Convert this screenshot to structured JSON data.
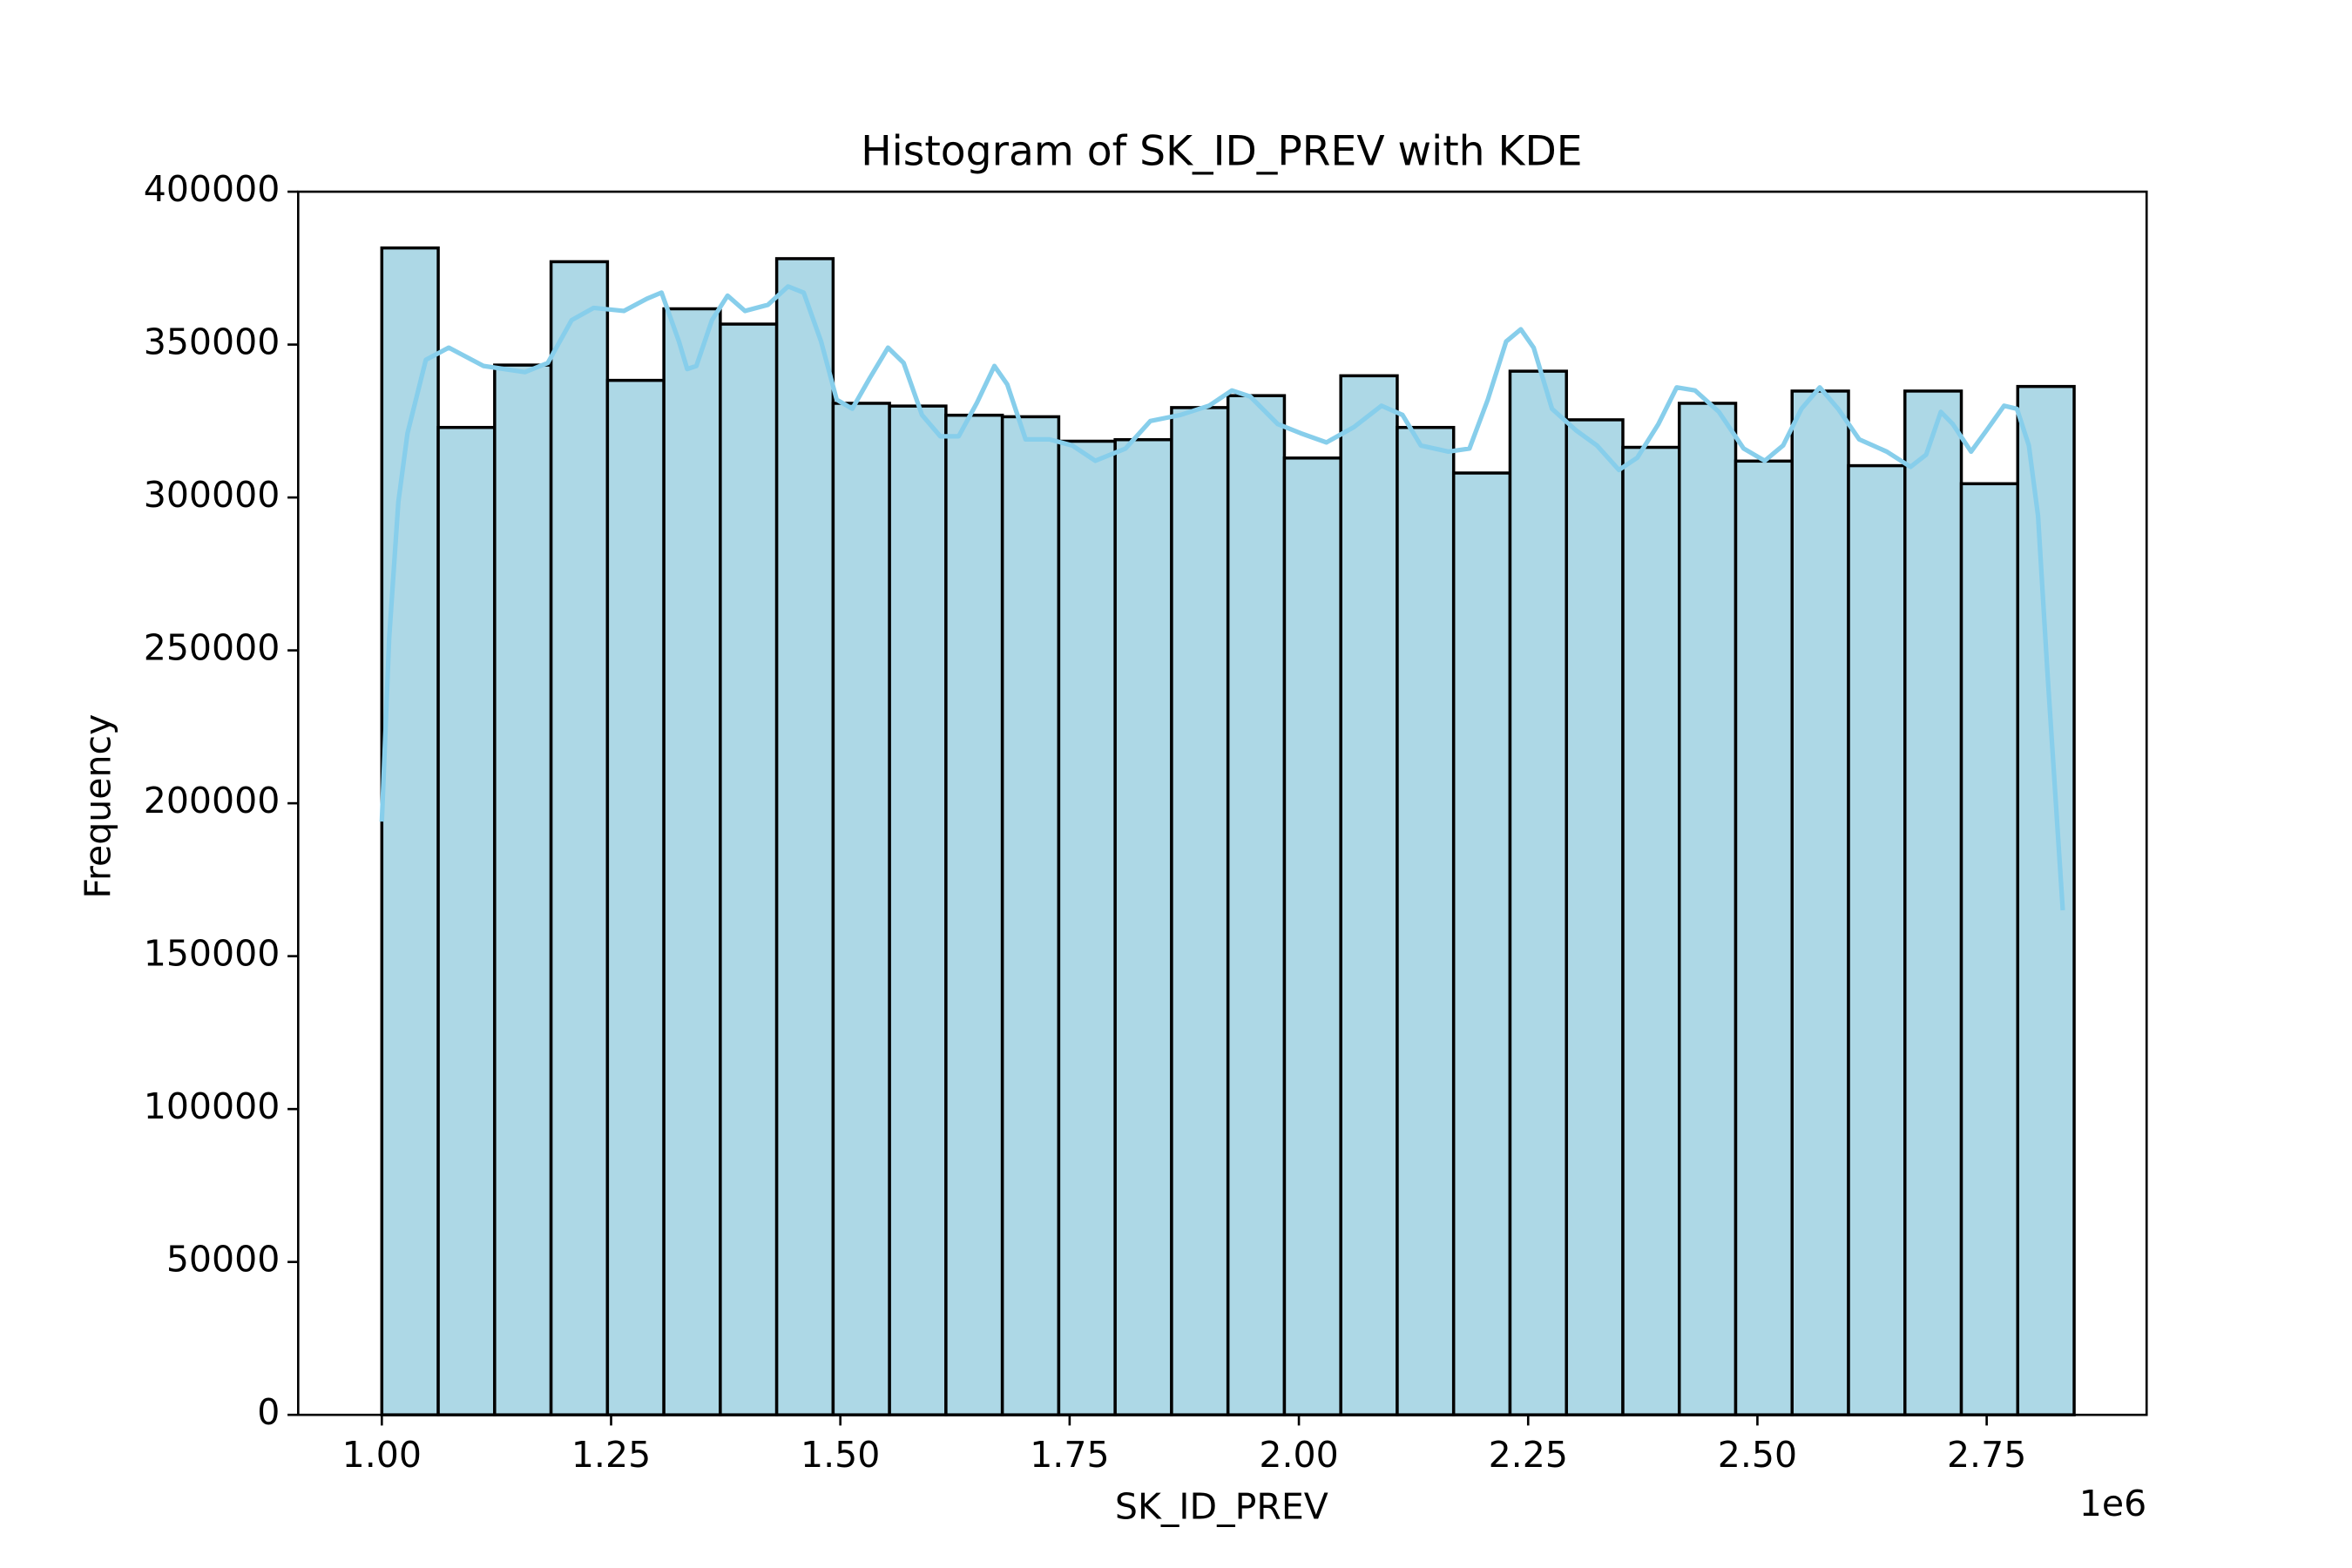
{
  "chart_data": {
    "type": "histogram",
    "title": "Histogram of SK_ID_PREV with KDE",
    "x_label": "SK_ID_PREV",
    "y_label": "Frequency",
    "x_offset_label": "1e6",
    "bins": [
      1000001,
      1061514,
      1123026,
      1184539,
      1246052,
      1307564,
      1369077,
      1430590,
      1492103,
      1553615,
      1615128,
      1676641,
      1738153,
      1799666,
      1861179,
      1922692,
      1984204,
      2045717,
      2107230,
      2168742,
      2230255,
      2291768,
      2353281,
      2414793,
      2476306,
      2537819,
      2599331,
      2660844,
      2722357,
      2783870,
      2845382
    ],
    "values": [
      381600,
      322900,
      343300,
      377100,
      338300,
      361700,
      356700,
      378100,
      330800,
      329900,
      326900,
      326400,
      318400,
      318900,
      329400,
      333300,
      312900,
      339800,
      322900,
      308000,
      341300,
      325400,
      316400,
      330800,
      311900,
      334800,
      310400,
      334800,
      304500,
      336300
    ],
    "color": "#add8e6",
    "edge_color": "#000000",
    "kde": {
      "color": "#87ceeb",
      "x": [
        1000000,
        1008000,
        1018000,
        1028000,
        1048000,
        1073000,
        1111000,
        1156000,
        1181000,
        1207000,
        1231000,
        1264000,
        1289000,
        1305000,
        1324000,
        1333000,
        1343000,
        1360000,
        1377000,
        1396000,
        1421000,
        1443000,
        1460000,
        1479000,
        1496000,
        1513000,
        1532000,
        1552000,
        1569000,
        1589000,
        1609000,
        1629000,
        1649000,
        1668000,
        1682000,
        1702000,
        1728000,
        1753000,
        1778000,
        1811000,
        1838000,
        1871000,
        1902000,
        1927000,
        1947000,
        1977000,
        2002000,
        2030000,
        2060000,
        2090000,
        2113000,
        2133000,
        2163000,
        2186000,
        2206000,
        2226000,
        2242000,
        2256000,
        2276000,
        2302000,
        2325000,
        2349000,
        2369000,
        2392000,
        2412000,
        2432000,
        2458000,
        2485000,
        2508000,
        2528000,
        2548000,
        2568000,
        2588000,
        2611000,
        2641000,
        2667000,
        2684000,
        2700000,
        2713000,
        2733000,
        2750000,
        2769000,
        2783000,
        2796000,
        2806000,
        2816000,
        2833000
      ],
      "values": [
        194000,
        254000,
        298500,
        321000,
        345000,
        349000,
        343000,
        341000,
        344000,
        358000,
        362000,
        361000,
        365000,
        367000,
        351000,
        342000,
        343000,
        358000,
        366000,
        361000,
        363000,
        369000,
        367000,
        351000,
        332000,
        329000,
        339000,
        349000,
        344000,
        327000,
        320000,
        320000,
        331000,
        343000,
        337000,
        319000,
        319000,
        317000,
        312000,
        316000,
        325000,
        327000,
        330000,
        335000,
        333000,
        324000,
        321000,
        318000,
        323000,
        330000,
        327000,
        317000,
        315000,
        316000,
        332000,
        351000,
        355000,
        349000,
        329000,
        322000,
        317000,
        309000,
        313000,
        324000,
        336000,
        335000,
        328000,
        316000,
        312000,
        317000,
        329000,
        336000,
        329000,
        319000,
        315000,
        310000,
        314000,
        328000,
        324000,
        315000,
        322000,
        330000,
        329000,
        317000,
        294000,
        244000,
        165000
      ]
    },
    "xlim": [
      908800,
      2924400
    ],
    "xticks": [
      {
        "value": 1000000,
        "label": "1.00"
      },
      {
        "value": 1250000,
        "label": "1.25"
      },
      {
        "value": 1500000,
        "label": "1.50"
      },
      {
        "value": 1750000,
        "label": "1.75"
      },
      {
        "value": 2000000,
        "label": "2.00"
      },
      {
        "value": 2250000,
        "label": "2.25"
      },
      {
        "value": 2500000,
        "label": "2.50"
      },
      {
        "value": 2750000,
        "label": "2.75"
      }
    ],
    "ylim": [
      0,
      400000
    ],
    "yticks": [
      0,
      50000,
      100000,
      150000,
      200000,
      250000,
      300000,
      350000,
      400000
    ],
    "grid": false
  }
}
